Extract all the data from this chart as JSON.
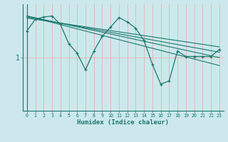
{
  "xlabel": "Humidex (Indice chaleur)",
  "xlim": [
    -0.5,
    23.5
  ],
  "ylim": [
    0.0,
    2.0
  ],
  "ytick_val": 1.0,
  "ytick_label": "1",
  "xticks": [
    0,
    1,
    2,
    3,
    4,
    5,
    6,
    7,
    8,
    9,
    10,
    11,
    12,
    13,
    14,
    15,
    16,
    17,
    18,
    19,
    20,
    21,
    22,
    23
  ],
  "bg_color": "#cce8ec",
  "line_color": "#1a7a6e",
  "grid_color": "#e8b0b0",
  "main_x": [
    0,
    1,
    2,
    3,
    4,
    5,
    6,
    7,
    8,
    9,
    10,
    11,
    12,
    13,
    14,
    15,
    16,
    17,
    18,
    19,
    20,
    21,
    22,
    23
  ],
  "main_y": [
    1.5,
    1.72,
    1.76,
    1.78,
    1.62,
    1.26,
    1.08,
    0.77,
    1.12,
    1.4,
    1.57,
    1.75,
    1.67,
    1.55,
    1.32,
    0.87,
    0.5,
    0.56,
    1.12,
    1.02,
    1.02,
    1.02,
    1.02,
    1.15
  ],
  "trend_lines": [
    {
      "x0": 0,
      "y0": 1.78,
      "x1": 23,
      "y1": 0.85
    },
    {
      "x0": 0,
      "y0": 1.78,
      "x1": 23,
      "y1": 1.0
    },
    {
      "x0": 0,
      "y0": 1.76,
      "x1": 23,
      "y1": 1.1
    },
    {
      "x0": 0,
      "y0": 1.74,
      "x1": 23,
      "y1": 1.2
    }
  ]
}
